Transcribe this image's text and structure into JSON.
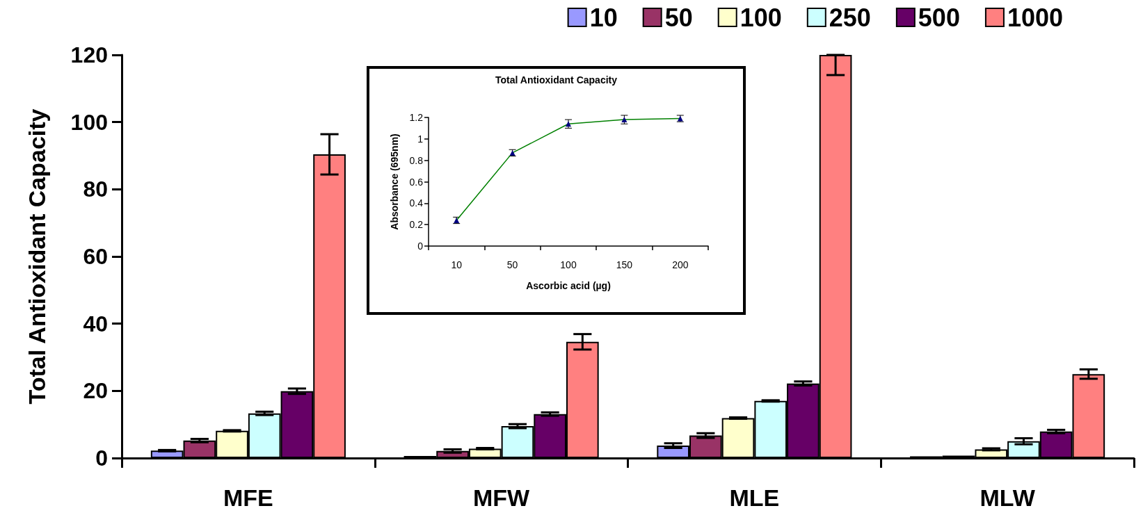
{
  "chart_data": [
    {
      "type": "bar",
      "ylabel": "Total Antioxidant Capacity",
      "categories": [
        "MFE",
        "MFW",
        "MLE",
        "MLW"
      ],
      "ylim": [
        0,
        120
      ],
      "yticks": [
        0,
        20,
        40,
        60,
        80,
        100,
        120
      ],
      "grid": false,
      "legend": "top right",
      "series": [
        {
          "name": "10",
          "color": "#9999ff",
          "values": [
            2.2,
            0.6,
            3.7,
            0.5
          ],
          "errors": [
            0.2,
            null,
            0.7,
            null
          ]
        },
        {
          "name": "50",
          "color": "#993366",
          "values": [
            5.2,
            2.1,
            6.7,
            0.7
          ],
          "errors": [
            0.5,
            0.5,
            0.7,
            null
          ]
        },
        {
          "name": "100",
          "color": "#ffffcc",
          "values": [
            8.1,
            2.8,
            11.9,
            2.6
          ],
          "errors": [
            0.2,
            0.2,
            0.2,
            0.3
          ]
        },
        {
          "name": "250",
          "color": "#ccffff",
          "values": [
            13.3,
            9.5,
            17.0,
            5.0
          ],
          "errors": [
            0.5,
            0.6,
            0.2,
            0.9
          ]
        },
        {
          "name": "500",
          "color": "#660066",
          "values": [
            19.9,
            13.1,
            22.2,
            7.9
          ],
          "errors": [
            0.8,
            0.5,
            0.6,
            0.5
          ]
        },
        {
          "name": "1000",
          "color": "#ff8080",
          "values": [
            90.4,
            34.6,
            120,
            25.0
          ],
          "errors": [
            6,
            2.3,
            [
              114,
              120
            ],
            1.4
          ]
        }
      ]
    },
    {
      "type": "line",
      "title": "Total Antioxidant Capacity",
      "xlabel": "Ascorbic acid (µg)",
      "ylabel": "Absorbance (695nm)",
      "categories": [
        "10",
        "50",
        "100",
        "150",
        "200"
      ],
      "ylim": [
        0,
        1.2
      ],
      "yticks": [
        0,
        0.2,
        0.4,
        0.6,
        0.8,
        1,
        1.2
      ],
      "grid": false,
      "legend": false,
      "marker": "triangle",
      "line_style": "solid",
      "series": [
        {
          "color": "#008000",
          "values": [
            0.24,
            0.87,
            1.14,
            1.18,
            1.19
          ],
          "errors": [
            0.03,
            0.03,
            0.04,
            0.04,
            0.03
          ]
        }
      ]
    }
  ]
}
